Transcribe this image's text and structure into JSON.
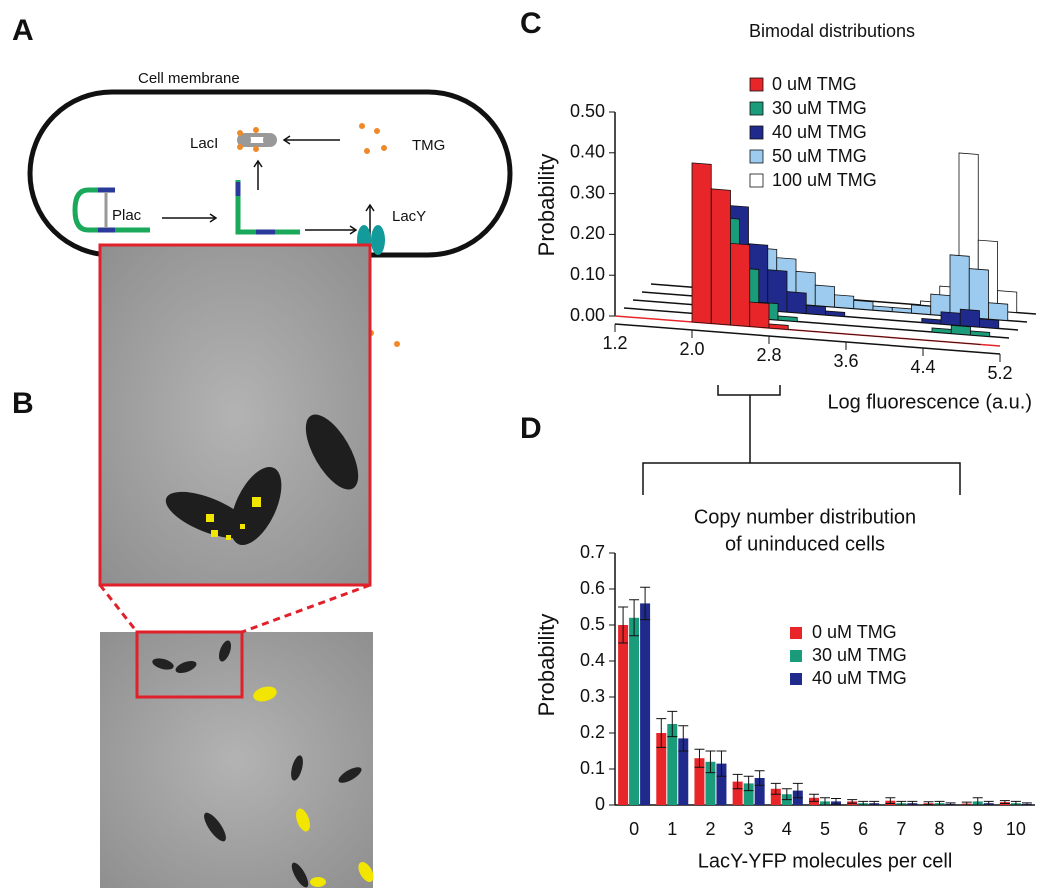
{
  "panels": [
    "A",
    "B",
    "C",
    "D"
  ],
  "diagram": {
    "membrane_label": "Cell membrane",
    "repressor": "LacI",
    "inducer": "TMG",
    "promoter": "Plac",
    "permease": "LacY"
  },
  "chart_data": [
    {
      "type": "histogram3d",
      "title": "Bimodal distributions",
      "x_label": "Log fluorescence (a.u.)",
      "y_label": "Probability",
      "bins": [
        2.0,
        2.2,
        2.4,
        2.6,
        2.8,
        3.0,
        3.2,
        3.4,
        3.6,
        3.8,
        4.0,
        4.2,
        4.4,
        4.6,
        4.8,
        5.0
      ],
      "series": [
        {
          "name": "0 uM TMG",
          "color": "#e8262a",
          "values": [
            0.39,
            0.33,
            0.2,
            0.06,
            0.01,
            0,
            0,
            0,
            0,
            0,
            0,
            0,
            0,
            0,
            0
          ]
        },
        {
          "name": "30 uM TMG",
          "color": "#1a9c7a",
          "values": [
            0.28,
            0.24,
            0.12,
            0.04,
            0.01,
            0,
            0,
            0,
            0,
            0,
            0,
            0,
            0.01,
            0.02,
            0.01
          ]
        },
        {
          "name": "40 uM TMG",
          "color": "#1f2a8c",
          "values": [
            0.22,
            0.25,
            0.16,
            0.1,
            0.05,
            0.02,
            0.01,
            0,
            0,
            0,
            0,
            0.01,
            0.03,
            0.04,
            0.02
          ]
        },
        {
          "name": "50 uM TMG",
          "color": "#9ccbef",
          "values": [
            0.06,
            0.12,
            0.13,
            0.11,
            0.08,
            0.05,
            0.03,
            0.02,
            0.01,
            0.01,
            0.02,
            0.05,
            0.15,
            0.12,
            0.04
          ]
        },
        {
          "name": "100 uM TMG",
          "color": "#ffffff",
          "values": [
            0,
            0,
            0,
            0,
            0,
            0,
            0,
            0,
            0,
            0,
            0.01,
            0.05,
            0.38,
            0.17,
            0.05
          ]
        }
      ],
      "xlim": [
        1.2,
        5.2
      ],
      "xticks": [
        1.2,
        {
          "value": 2,
          "label": "2.0"
        },
        2.8,
        3.6,
        4.4,
        5.2
      ],
      "ylim": [
        0,
        0.5
      ],
      "yticks": [
        {
          "value": 0,
          "label": "0.00"
        },
        {
          "value": 0.1,
          "label": "0.10"
        },
        {
          "value": 0.2,
          "label": "0.20"
        },
        {
          "value": 0.3,
          "label": "0.30"
        },
        {
          "value": 0.4,
          "label": "0.40"
        },
        {
          "value": 0.5,
          "label": "0.50"
        }
      ]
    },
    {
      "type": "bar",
      "title": [
        "Copy number distribution",
        "of uninduced cells"
      ],
      "x_label": "LacY-YFP molecules per cell",
      "y_label": "Probability",
      "categories": [
        "0",
        "1",
        "2",
        "3",
        "4",
        "5",
        "6",
        "7",
        "8",
        "9",
        "10"
      ],
      "series": [
        {
          "name": "0 uM TMG",
          "color": "#e8262a",
          "values": [
            0.5,
            0.2,
            0.13,
            0.065,
            0.045,
            0.02,
            0.01,
            0.012,
            0.005,
            0.004,
            0.008
          ],
          "errors": [
            0.05,
            0.04,
            0.025,
            0.02,
            0.015,
            0.01,
            0.005,
            0.008,
            0.004,
            0.004,
            0.004
          ]
        },
        {
          "name": "30 uM TMG",
          "color": "#1a9c7a",
          "values": [
            0.52,
            0.225,
            0.12,
            0.06,
            0.03,
            0.01,
            0.005,
            0.005,
            0.005,
            0.01,
            0.005
          ],
          "errors": [
            0.05,
            0.035,
            0.03,
            0.02,
            0.015,
            0.01,
            0.005,
            0.005,
            0.005,
            0.01,
            0.005
          ]
        },
        {
          "name": "40 uM TMG",
          "color": "#1f2a8c",
          "values": [
            0.56,
            0.185,
            0.115,
            0.075,
            0.04,
            0.01,
            0.005,
            0.005,
            0.003,
            0.005,
            0.003
          ],
          "errors": [
            0.045,
            0.035,
            0.035,
            0.02,
            0.02,
            0.008,
            0.005,
            0.005,
            0.003,
            0.005,
            0.003
          ]
        }
      ],
      "ylim": [
        0,
        0.7
      ],
      "yticks": [
        0,
        0.1,
        0.2,
        0.3,
        0.4,
        0.5,
        0.6,
        0.7
      ]
    }
  ]
}
